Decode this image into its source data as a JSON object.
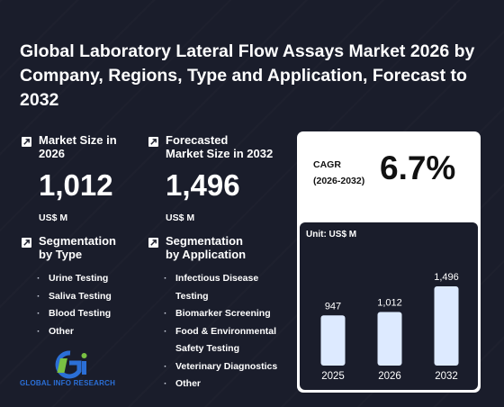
{
  "title": "Global Laboratory Lateral Flow Assays Market 2026 by Company, Regions, Type and Application, Forecast to 2032",
  "market_size": {
    "label_line1": "Market Size in",
    "label_line2": "2026",
    "value": "1,012",
    "unit": "US$ M"
  },
  "forecast_size": {
    "label_line1": "Forecasted",
    "label_line2": "Market Size in 2032",
    "value": "1,496",
    "unit": "US$ M"
  },
  "seg_type": {
    "label_line1": "Segmentation",
    "label_line2": "by Type",
    "items": [
      "Urine Testing",
      "Saliva Testing",
      "Blood Testing",
      "Other"
    ]
  },
  "seg_app": {
    "label_line1": "Segmentation",
    "label_line2": "by Application",
    "items": [
      [
        "Infectious Disease",
        "Testing"
      ],
      [
        "Biomarker Screening"
      ],
      [
        "Food & Environmental",
        "Safety Testing"
      ],
      [
        "Veterinary Diagnostics"
      ],
      [
        "Other"
      ]
    ]
  },
  "logo": {
    "mark": "Gi",
    "text": "GLOBAL INFO RESEARCH"
  },
  "cagr": {
    "label_line1": "CAGR",
    "label_line2": "(2026-2032)",
    "value": "6.7%"
  },
  "chart_unit": "Unit: US$ M",
  "colors": {
    "background": "#1a1d2b",
    "bar": "#ddeaff",
    "logo_blue": "#2b6fd6",
    "logo_green": "#7ac143"
  },
  "chart_data": {
    "type": "bar",
    "categories": [
      "2025",
      "2026",
      "2032"
    ],
    "values": [
      947,
      1012,
      1496
    ],
    "value_labels": [
      "947",
      "1,012",
      "1,496"
    ],
    "title": "",
    "xlabel": "",
    "ylabel": "",
    "grid": false,
    "legend": "none"
  }
}
